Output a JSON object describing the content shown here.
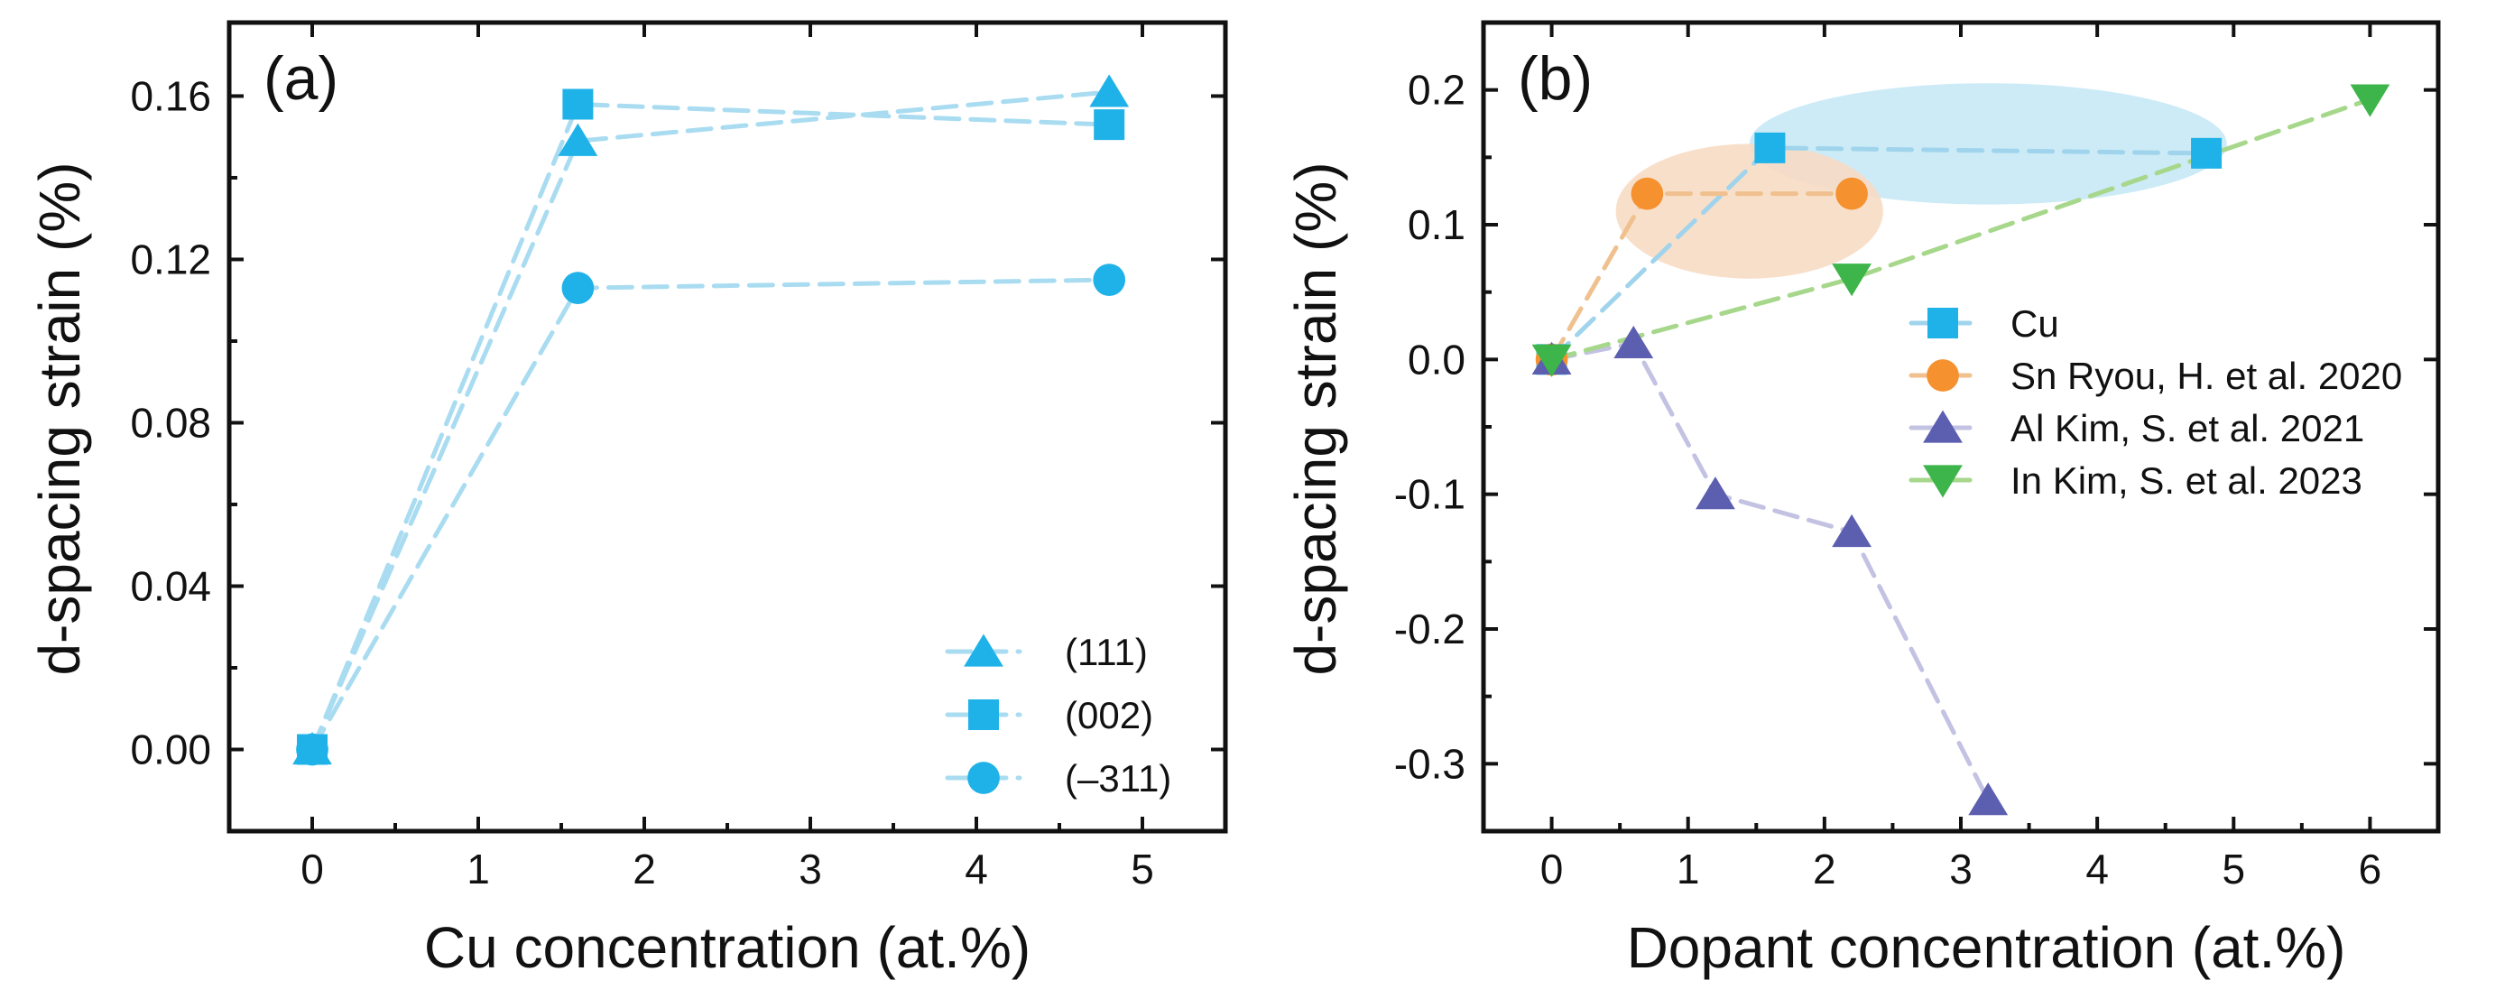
{
  "chart_data": [
    {
      "type": "scatter",
      "panel_label": "(a)",
      "xlabel": "Cu concentration (at.%)",
      "ylabel": "d-spacing strain (%)",
      "xlim": [
        -0.5,
        5.5
      ],
      "ylim": [
        -0.02,
        0.178
      ],
      "xticks": [
        0,
        1,
        2,
        3,
        4,
        5
      ],
      "xtick_labels": [
        "0",
        "1",
        "2",
        "3",
        "4",
        "5"
      ],
      "yticks": [
        0.0,
        0.04,
        0.08,
        0.12,
        0.16
      ],
      "ytick_labels": [
        "0.00",
        "0.04",
        "0.08",
        "0.12",
        "0.16"
      ],
      "legend_position": "bottom-right",
      "series": [
        {
          "name": "(111)",
          "marker": "triangle-up",
          "color": "#1fb2e8",
          "line_color": "#a9dcf1",
          "x": [
            0,
            1.6,
            4.8
          ],
          "y": [
            0.0,
            0.149,
            0.161
          ]
        },
        {
          "name": "(002)",
          "marker": "square",
          "color": "#1fb2e8",
          "line_color": "#a9dcf1",
          "x": [
            0,
            1.6,
            4.8
          ],
          "y": [
            0.0,
            0.158,
            0.153
          ]
        },
        {
          "name": "(–311)",
          "marker": "circle",
          "color": "#1fb2e8",
          "line_color": "#a9dcf1",
          "x": [
            0,
            1.6,
            4.8
          ],
          "y": [
            0.0,
            0.113,
            0.115
          ]
        }
      ]
    },
    {
      "type": "scatter",
      "panel_label": "(b)",
      "xlabel": "Dopant concentration (at.%)",
      "ylabel": "d-spacing strain (%)",
      "xlim": [
        -0.5,
        6.5
      ],
      "ylim": [
        -0.35,
        0.25
      ],
      "xticks": [
        0,
        1,
        2,
        3,
        4,
        5,
        6
      ],
      "xtick_labels": [
        "0",
        "1",
        "2",
        "3",
        "4",
        "5",
        "6"
      ],
      "yticks": [
        -0.3,
        -0.2,
        -0.1,
        0.0,
        0.1,
        0.2
      ],
      "ytick_labels": [
        "-0.3",
        "-0.2",
        "-0.1",
        "0.0",
        "0.1",
        "0.2"
      ],
      "legend_position": "center-right",
      "series": [
        {
          "name": "Cu",
          "marker": "square",
          "color": "#1fb2e8",
          "line_color": "#9fd4ec",
          "x": [
            0,
            1.6,
            4.8
          ],
          "y": [
            0.0,
            0.157,
            0.153
          ]
        },
        {
          "name": "Sn Ryou, H. et al. 2020",
          "marker": "circle",
          "color": "#f5922f",
          "line_color": "#f0c08e",
          "x": [
            0,
            0.7,
            2.2
          ],
          "y": [
            0.0,
            0.123,
            0.123
          ]
        },
        {
          "name": "Al Kim, S. et al. 2021",
          "marker": "triangle-up",
          "color": "#5c5eb0",
          "line_color": "#c3c2e2",
          "x": [
            0,
            0.6,
            1.2,
            2.2,
            3.2
          ],
          "y": [
            0.0,
            0.012,
            -0.1,
            -0.128,
            -0.327
          ]
        },
        {
          "name": "In Kim, S. et al. 2023",
          "marker": "triangle-down",
          "color": "#3db54a",
          "line_color": "#a6d78b",
          "x": [
            0,
            2.2,
            6.0
          ],
          "y": [
            0.0,
            0.06,
            0.193
          ]
        }
      ],
      "highlights": [
        {
          "cx": 3.2,
          "cy": 0.16,
          "rx": 1.75,
          "ry": 0.045,
          "color": "#c6e9f6"
        },
        {
          "cx": 1.45,
          "cy": 0.11,
          "rx": 0.98,
          "ry": 0.05,
          "color": "#f7dcc4"
        }
      ]
    }
  ]
}
